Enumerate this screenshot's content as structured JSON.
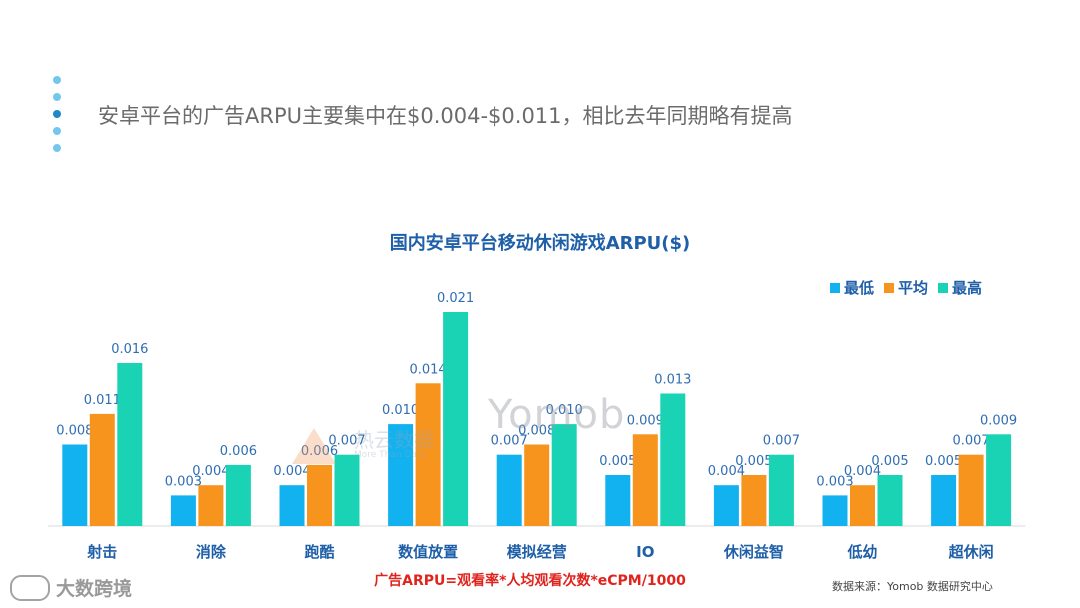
{
  "headline": "安卓平台的广告ARPU主要集中在$0.004-$0.011，相比去年同期略有提高",
  "colors": {
    "min": "#12b1f0",
    "avg": "#f7941d",
    "max": "#19d3b4",
    "title": "#1f5fa8",
    "label": "#2f6db3",
    "formula": "#e0231c"
  },
  "chart_data": {
    "type": "bar",
    "title": "国内安卓平台移动休闲游戏ARPU($)",
    "categories": [
      "射击",
      "消除",
      "跑酷",
      "数值放置",
      "模拟经营",
      "IO",
      "休闲益智",
      "低幼",
      "超休闲"
    ],
    "series": [
      {
        "name": "最低",
        "values": [
          0.008,
          0.003,
          0.004,
          0.01,
          0.007,
          0.005,
          0.004,
          0.003,
          0.005
        ],
        "labels": [
          "0.008",
          "0.003",
          "0.004",
          "0.010",
          "0.007",
          "0.005",
          "0.004",
          "0.003",
          "0.005"
        ]
      },
      {
        "name": "平均",
        "values": [
          0.011,
          0.004,
          0.006,
          0.014,
          0.008,
          0.009,
          0.005,
          0.004,
          0.007
        ],
        "labels": [
          "0.011",
          "0.004",
          "0.006",
          "0.014",
          "0.008",
          "0.009",
          "0.005",
          "0.004",
          "0.007"
        ]
      },
      {
        "name": "最高",
        "values": [
          0.016,
          0.006,
          0.007,
          0.021,
          0.01,
          0.013,
          0.007,
          0.005,
          0.009
        ],
        "labels": [
          "0.016",
          "0.006",
          "0.007",
          "0.021",
          "0.010",
          "0.013",
          "0.007",
          "0.005",
          "0.009"
        ]
      }
    ],
    "ylim": [
      0,
      0.021
    ],
    "legend_position": "top-right",
    "grid": false
  },
  "formula": "广告ARPU=观看率*人均观看次数*eCPM/1000",
  "source": "数据来源：Yomob 数据研究中心",
  "watermarks": {
    "rewu_text": "热云数据",
    "rewu_sub": "More Than Data",
    "yomob_text": "Yomob",
    "dashu_text": "大数跨境"
  }
}
